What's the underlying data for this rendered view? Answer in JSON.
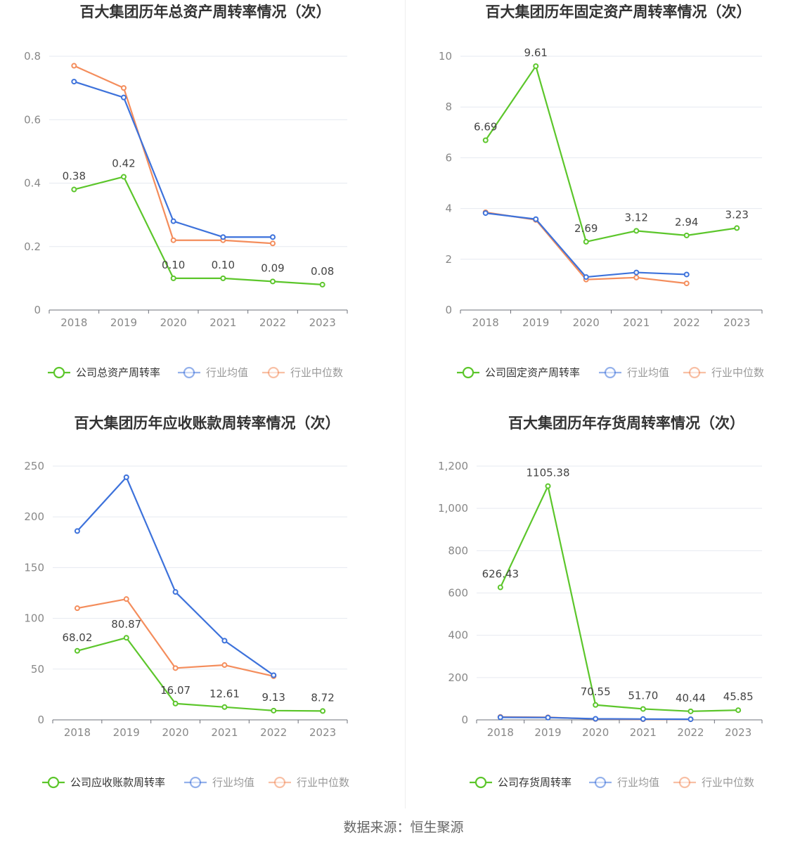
{
  "source_label": "数据来源：恒生聚源",
  "chart_data": [
    {
      "type": "line",
      "title": "百大集团历年总资产周转率情况（次）",
      "categories": [
        "2018",
        "2019",
        "2020",
        "2021",
        "2022",
        "2023"
      ],
      "ylim": [
        0,
        0.8
      ],
      "yticks": [
        0,
        0.2,
        0.4,
        0.6,
        0.8
      ],
      "ytick_labels": [
        "0",
        "0.2",
        "0.4",
        "0.6",
        "0.8"
      ],
      "grid": true,
      "legend": "bottom",
      "series": [
        {
          "name": "公司总资产周转率",
          "color": "#5cc62b",
          "values": [
            0.38,
            0.42,
            0.1,
            0.1,
            0.09,
            0.08
          ],
          "labels": [
            "0.38",
            "0.42",
            "0.10",
            "0.10",
            "0.09",
            "0.08"
          ]
        },
        {
          "name": "行业均值",
          "color": "#3d72db",
          "values": [
            0.72,
            0.67,
            0.28,
            0.23,
            0.23,
            null
          ]
        },
        {
          "name": "行业中位数",
          "color": "#f48d5c",
          "values": [
            0.77,
            0.7,
            0.22,
            0.22,
            0.21,
            null
          ]
        }
      ]
    },
    {
      "type": "line",
      "title": "百大集团历年固定资产周转率情况（次）",
      "categories": [
        "2018",
        "2019",
        "2020",
        "2021",
        "2022",
        "2023"
      ],
      "ylim": [
        0,
        10
      ],
      "yticks": [
        0,
        2,
        4,
        6,
        8,
        10
      ],
      "ytick_labels": [
        "0",
        "2",
        "4",
        "6",
        "8",
        "10"
      ],
      "grid": true,
      "legend": "bottom",
      "series": [
        {
          "name": "公司固定资产周转率",
          "color": "#5cc62b",
          "values": [
            6.69,
            9.61,
            2.69,
            3.12,
            2.94,
            3.23
          ],
          "labels": [
            "6.69",
            "9.61",
            "2.69",
            "3.12",
            "2.94",
            "3.23"
          ]
        },
        {
          "name": "行业均值",
          "color": "#3d72db",
          "values": [
            3.82,
            3.58,
            1.3,
            1.48,
            1.4,
            null
          ]
        },
        {
          "name": "行业中位数",
          "color": "#f48d5c",
          "values": [
            3.85,
            3.55,
            1.2,
            1.28,
            1.05,
            null
          ]
        }
      ]
    },
    {
      "type": "line",
      "title": "百大集团历年应收账款周转率情况（次）",
      "categories": [
        "2018",
        "2019",
        "2020",
        "2021",
        "2022",
        "2023"
      ],
      "ylim": [
        0,
        250
      ],
      "yticks": [
        0,
        50,
        100,
        150,
        200,
        250
      ],
      "ytick_labels": [
        "0",
        "50",
        "100",
        "150",
        "200",
        "250"
      ],
      "grid": true,
      "legend": "bottom",
      "series": [
        {
          "name": "公司应收账款周转率",
          "color": "#5cc62b",
          "values": [
            68.02,
            80.87,
            16.07,
            12.61,
            9.13,
            8.72
          ],
          "labels": [
            "68.02",
            "80.87",
            "16.07",
            "12.61",
            "9.13",
            "8.72"
          ]
        },
        {
          "name": "行业均值",
          "color": "#3d72db",
          "values": [
            186,
            239,
            126,
            78,
            44,
            null
          ]
        },
        {
          "name": "行业中位数",
          "color": "#f48d5c",
          "values": [
            110,
            119,
            51,
            54,
            43,
            null
          ]
        }
      ]
    },
    {
      "type": "line",
      "title": "百大集团历年存货周转率情况（次）",
      "categories": [
        "2018",
        "2019",
        "2020",
        "2021",
        "2022",
        "2023"
      ],
      "ylim": [
        0,
        1200
      ],
      "yticks": [
        0,
        200,
        400,
        600,
        800,
        1000,
        1200
      ],
      "ytick_labels": [
        "0",
        "200",
        "400",
        "600",
        "800",
        "1,000",
        "1,200"
      ],
      "grid": true,
      "legend": "bottom",
      "series": [
        {
          "name": "公司存货周转率",
          "color": "#5cc62b",
          "values": [
            626.43,
            1105.38,
            70.55,
            51.7,
            40.44,
            45.85
          ],
          "labels": [
            "626.43",
            "1105.38",
            "70.55",
            "51.70",
            "40.44",
            "45.85"
          ]
        },
        {
          "name": "行业均值",
          "color": "#3d72db",
          "values": [
            12,
            11,
            5,
            4,
            3,
            null
          ]
        },
        {
          "name": "行业中位数",
          "color": "#f48d5c",
          "values": [
            14,
            12,
            4,
            3,
            3,
            null
          ]
        }
      ]
    }
  ]
}
